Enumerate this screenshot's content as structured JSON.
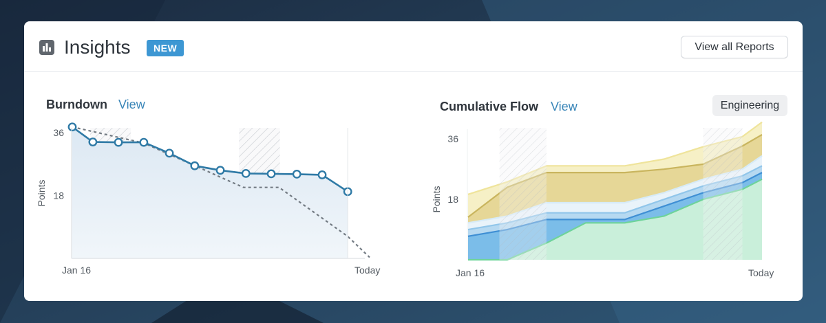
{
  "header": {
    "title": "Insights",
    "badge": "NEW",
    "view_all_label": "View all Reports",
    "icon": "bar-chart-icon"
  },
  "burndown": {
    "title": "Burndown",
    "link_label": "View",
    "chart_data": {
      "type": "line",
      "title": "Burndown",
      "ylabel": "Points",
      "x_start_label": "Jan 16",
      "x_end_label": "Today",
      "y_ticks": [
        36,
        18
      ],
      "ylim": [
        0,
        40.3
      ],
      "x_range": [
        0,
        12
      ],
      "shaded_ranges": [
        [
          0.68,
          2.22
        ],
        [
          6.32,
          7.87
        ]
      ],
      "series": [
        {
          "role": "actual",
          "x": [
            0,
            0.78,
            1.75,
            2.71,
            3.68,
            4.64,
            5.61,
            6.58,
            7.54,
            8.51,
            9.47,
            10.44
          ],
          "y": [
            37.6,
            33.3,
            33.2,
            33.2,
            30.1,
            26.5,
            25.2,
            24.3,
            24.2,
            24.1,
            23.9,
            19.1
          ],
          "color": "#2f7aa6"
        },
        {
          "role": "ideal",
          "x": [
            0,
            2.71,
            6.49,
            7.84,
            10.44,
            11.27
          ],
          "y": [
            37.6,
            33.0,
            20.3,
            20.3,
            6.3,
            0.3
          ],
          "color": "#737b83"
        }
      ]
    }
  },
  "cumulative_flow": {
    "title": "Cumulative Flow",
    "link_label": "View",
    "filter_label": "Engineering",
    "chart_data": {
      "type": "area",
      "title": "Cumulative Flow",
      "ylabel": "Points",
      "x_start_label": "Jan 16",
      "x_end_label": "Today",
      "y_ticks": [
        36,
        18
      ],
      "ylim": [
        0,
        42.4
      ],
      "x": [
        0,
        1.6,
        3.2,
        4.8,
        6.4,
        8.0,
        9.6,
        11.2,
        12.0
      ],
      "shaded_ranges": [
        [
          1.28,
          3.2
        ],
        [
          9.6,
          11.2
        ]
      ],
      "series": [
        {
          "name": "",
          "color": "#6ed39a",
          "fill": "#c9efda",
          "values": [
            0,
            0,
            5,
            11,
            11,
            13,
            18,
            21,
            24
          ]
        },
        {
          "name": "",
          "color": "#3f8fd4",
          "fill": "#7bbde9",
          "values": [
            7,
            9,
            12,
            12,
            12,
            16,
            20,
            23,
            26
          ]
        },
        {
          "name": "",
          "color": "#91c6ea",
          "fill": "#b6d9f1",
          "values": [
            9,
            11,
            14,
            14,
            14,
            18,
            22,
            25,
            28
          ]
        },
        {
          "name": "",
          "color": "#d7ebf7",
          "fill": "#e9f3fa",
          "values": [
            11,
            13,
            17,
            17,
            17,
            20,
            24,
            27,
            31
          ]
        },
        {
          "name": "",
          "color": "#c9b55e",
          "fill": "#e6d797",
          "values": [
            12.7,
            21.6,
            26,
            26,
            26,
            27,
            28.5,
            33.9,
            37.3
          ]
        },
        {
          "name": "",
          "color": "#efe49b",
          "fill": "#f6f0c6",
          "values": [
            19.5,
            23.2,
            28,
            28,
            28,
            30,
            33.7,
            36.7,
            41
          ]
        }
      ]
    }
  }
}
